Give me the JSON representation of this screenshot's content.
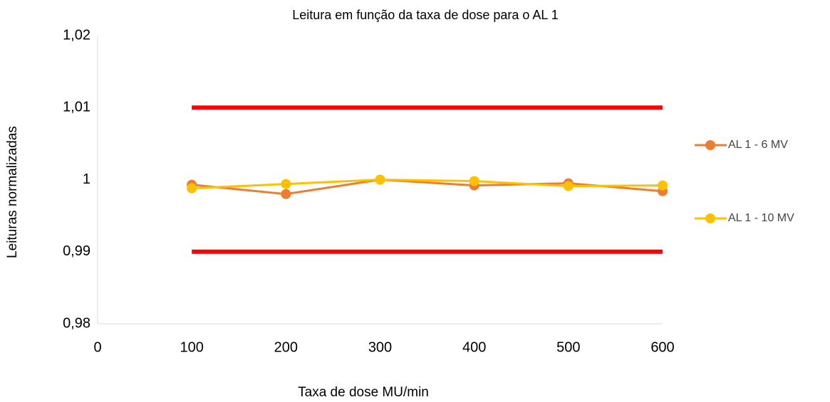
{
  "chart_data": {
    "type": "line",
    "title": "Leitura em função da taxa de dose para o AL 1",
    "xlabel": "Taxa de dose MU/min",
    "ylabel": "Leituras normalizadas",
    "x": [
      100,
      200,
      300,
      400,
      500,
      600
    ],
    "series": [
      {
        "color": "#ff0000",
        "values": [
          1.01,
          1.01,
          1.01,
          1.01,
          1.01,
          1.01
        ],
        "markers": false
      },
      {
        "color": "#ff0000",
        "values": [
          0.99,
          0.99,
          0.99,
          0.99,
          0.99,
          0.99
        ],
        "markers": false
      },
      {
        "name": "AL 1 - 6 MV",
        "color": "#ed7d31",
        "values": [
          0.9993,
          0.998,
          1.0,
          0.9992,
          0.9995,
          0.9984
        ],
        "markers": true
      },
      {
        "name": "AL 1 - 10 MV",
        "color": "#ffc000",
        "values": [
          0.9988,
          0.9994,
          1.0,
          0.9998,
          0.9991,
          0.9992
        ],
        "markers": true
      }
    ],
    "xlim": [
      0,
      600
    ],
    "xticks": [
      0,
      100,
      200,
      300,
      400,
      500,
      600
    ],
    "ylim": [
      0.98,
      1.02
    ],
    "yticks": [
      {
        "value": 0.98,
        "label": "0,98"
      },
      {
        "value": 0.99,
        "label": "0,99"
      },
      1,
      {
        "value": 1.01,
        "label": "1,01"
      },
      {
        "value": 1.02,
        "label": "1,02"
      }
    ],
    "grid": false,
    "legend": "right"
  }
}
